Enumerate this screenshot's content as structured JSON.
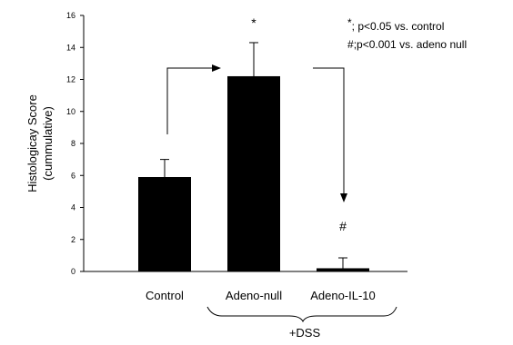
{
  "chart_data": {
    "type": "bar",
    "title": "",
    "xlabel": "",
    "ylabel": [
      "Histologicay Score",
      "(cummulative)"
    ],
    "ylim": [
      0,
      16
    ],
    "yticks": [
      "0",
      "2",
      "4",
      "6",
      "8",
      "10",
      "12",
      "14",
      "16"
    ],
    "categories": [
      "Control",
      "Adeno-null",
      "Adeno-IL-10"
    ],
    "values": [
      5.9,
      12.2,
      0.2
    ],
    "errors": [
      1.1,
      2.1,
      0.65
    ],
    "bar_color": "#000000",
    "bar_labels": [
      "",
      "*",
      "#"
    ],
    "group_label": "+DSS",
    "grid": false,
    "legend": {
      "position": "top-right",
      "lines": [
        {
          "symbol": "*",
          "text": "; p<0.05 vs. control"
        },
        {
          "symbol": "#",
          "text": ";p<0.001 vs. adeno null"
        }
      ]
    }
  }
}
